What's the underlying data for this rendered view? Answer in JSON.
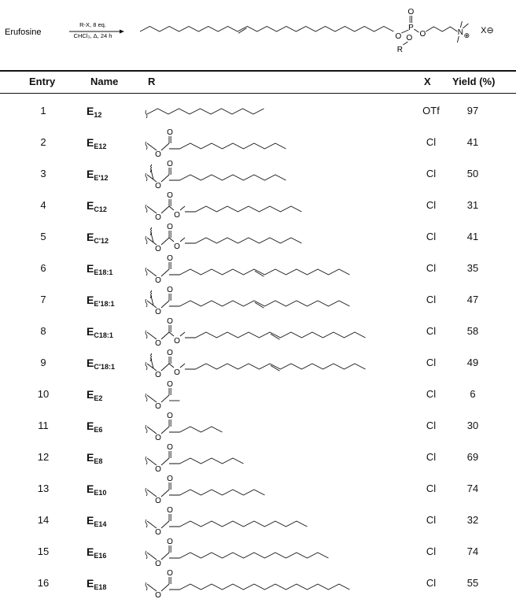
{
  "scheme": {
    "reactant": "Erufosine",
    "reagent_top": "R-X, 8 eq.",
    "reagent_bottom": "CHCl₃, Δ, 24 h",
    "atom_O": "O",
    "atom_P": "P",
    "atom_N": "N",
    "atom_R": "R",
    "plus": "⊕",
    "counterion": "X⊖"
  },
  "table": {
    "headers": {
      "entry": "Entry",
      "name": "Name",
      "r": "R",
      "x": "X",
      "yield": "Yield (%)"
    },
    "rows": [
      {
        "entry": "1",
        "name_main": "E",
        "name_sub": "12",
        "x": "OTf",
        "yield": "97",
        "kind": "alkyl",
        "chain": 11,
        "db": null
      },
      {
        "entry": "2",
        "name_main": "E",
        "name_sub": "E12",
        "x": "Cl",
        "yield": "41",
        "kind": "ester",
        "chain": 11,
        "db": null
      },
      {
        "entry": "3",
        "name_main": "E",
        "name_sub": "E'12",
        "x": "Cl",
        "yield": "50",
        "kind": "ester-me",
        "chain": 11,
        "db": null
      },
      {
        "entry": "4",
        "name_main": "E",
        "name_sub": "C12",
        "x": "Cl",
        "yield": "31",
        "kind": "carb",
        "chain": 11,
        "db": null
      },
      {
        "entry": "5",
        "name_main": "E",
        "name_sub": "C'12",
        "x": "Cl",
        "yield": "41",
        "kind": "carb-me",
        "chain": 11,
        "db": null
      },
      {
        "entry": "6",
        "name_main": "E",
        "name_sub": "E18:1",
        "x": "Cl",
        "yield": "35",
        "kind": "ester",
        "chain": 17,
        "db": 8
      },
      {
        "entry": "7",
        "name_main": "E",
        "name_sub": "E'18:1",
        "x": "Cl",
        "yield": "47",
        "kind": "ester-me",
        "chain": 17,
        "db": 8
      },
      {
        "entry": "8",
        "name_main": "E",
        "name_sub": "C18:1",
        "x": "Cl",
        "yield": "58",
        "kind": "carb",
        "chain": 17,
        "db": 8
      },
      {
        "entry": "9",
        "name_main": "E",
        "name_sub": "C'18:1",
        "x": "Cl",
        "yield": "49",
        "kind": "carb-me",
        "chain": 17,
        "db": 8
      },
      {
        "entry": "10",
        "name_main": "E",
        "name_sub": "E2",
        "x": "Cl",
        "yield": "6",
        "kind": "ester",
        "chain": 1,
        "db": null
      },
      {
        "entry": "11",
        "name_main": "E",
        "name_sub": "E6",
        "x": "Cl",
        "yield": "30",
        "kind": "ester",
        "chain": 5,
        "db": null
      },
      {
        "entry": "12",
        "name_main": "E",
        "name_sub": "E8",
        "x": "Cl",
        "yield": "69",
        "kind": "ester",
        "chain": 7,
        "db": null
      },
      {
        "entry": "13",
        "name_main": "E",
        "name_sub": "E10",
        "x": "Cl",
        "yield": "74",
        "kind": "ester",
        "chain": 9,
        "db": null
      },
      {
        "entry": "14",
        "name_main": "E",
        "name_sub": "E14",
        "x": "Cl",
        "yield": "32",
        "kind": "ester",
        "chain": 13,
        "db": null
      },
      {
        "entry": "15",
        "name_main": "E",
        "name_sub": "E16",
        "x": "Cl",
        "yield": "74",
        "kind": "ester",
        "chain": 15,
        "db": null
      },
      {
        "entry": "16",
        "name_main": "E",
        "name_sub": "E18",
        "x": "Cl",
        "yield": "55",
        "kind": "ester",
        "chain": 17,
        "db": null
      }
    ]
  }
}
